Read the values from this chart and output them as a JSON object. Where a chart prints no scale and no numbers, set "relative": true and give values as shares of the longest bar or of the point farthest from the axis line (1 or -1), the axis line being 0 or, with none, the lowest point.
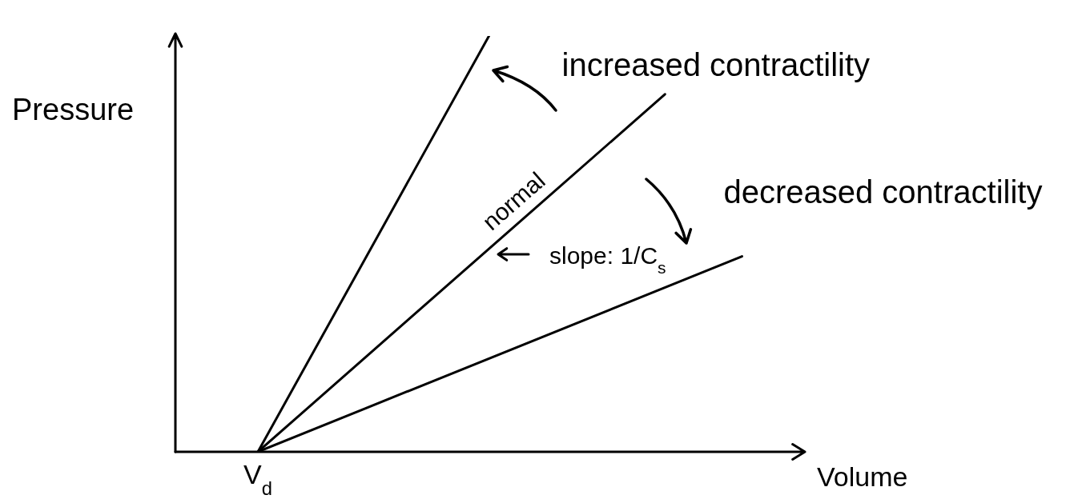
{
  "chart_data": {
    "type": "line",
    "relative": true,
    "marker": "none",
    "legend": "top right",
    "xlabel": "Volume",
    "ylabel": "Pressure",
    "categories": [
      null,
      null,
      null,
      null,
      null,
      null,
      null,
      null,
      null,
      null,
      null,
      null,
      null,
      null,
      null,
      null,
      null,
      null,
      null,
      null,
      null,
      null,
      null,
      null,
      null,
      null,
      null,
      null,
      null,
      null,
      null,
      null,
      null,
      null,
      null,
      null,
      null,
      null,
      null,
      null,
      null,
      null,
      null,
      null,
      null,
      null,
      null,
      null,
      null,
      null,
      null,
      null,
      null,
      null,
      null,
      null,
      null
    ],
    "series": [
      {
        "name": "increased contractility",
        "color": "#000000",
        "values": [
          null,
          null,
          null,
          null,
          null,
          null,
          null,
          0,
          null,
          null,
          null,
          null,
          null,
          null,
          null,
          null,
          null,
          null,
          null,
          null,
          null,
          null,
          null,
          null,
          null,
          null,
          null,
          null,
          1,
          null,
          null,
          null,
          null,
          null,
          null,
          null,
          null,
          null,
          null,
          null,
          null,
          null,
          null,
          null,
          null,
          null,
          null,
          null,
          null,
          null,
          null,
          null,
          null,
          null,
          null,
          null,
          null
        ]
      },
      {
        "name": "normal",
        "color": "#000000",
        "values": [
          null,
          null,
          null,
          null,
          null,
          null,
          null,
          0,
          null,
          null,
          null,
          null,
          null,
          null,
          null,
          null,
          null,
          null,
          null,
          null,
          null,
          null,
          null,
          null,
          null,
          null,
          null,
          null,
          null,
          null,
          null,
          null,
          null,
          null,
          null,
          null,
          null,
          null,
          null,
          null,
          null,
          null,
          null,
          null,
          0.86,
          null,
          null,
          null,
          null,
          null,
          null,
          null,
          null,
          null,
          null,
          null,
          null
        ]
      },
      {
        "name": "decreased contractility",
        "color": "#000000",
        "values": [
          null,
          null,
          null,
          null,
          null,
          null,
          null,
          0,
          null,
          null,
          null,
          null,
          null,
          null,
          null,
          null,
          null,
          null,
          null,
          null,
          null,
          null,
          null,
          null,
          null,
          null,
          null,
          null,
          null,
          null,
          null,
          null,
          null,
          null,
          null,
          null,
          null,
          null,
          null,
          null,
          null,
          null,
          null,
          null,
          null,
          null,
          null,
          null,
          null,
          null,
          null,
          0.47,
          null,
          null,
          null,
          null,
          null
        ]
      }
    ],
    "annotations": [
      "slope: 1/C$_{s}$",
      "V$_{d}$"
    ]
  }
}
